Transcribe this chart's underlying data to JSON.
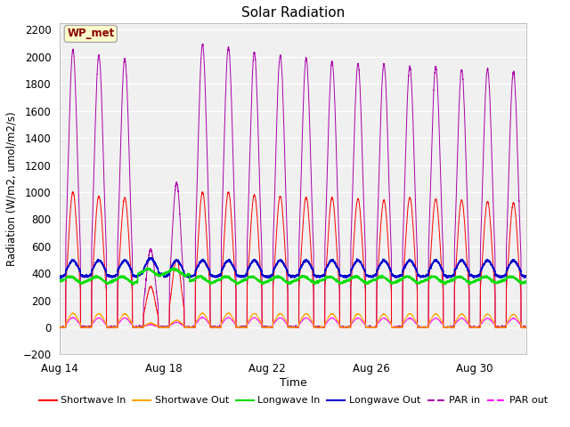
{
  "title": "Solar Radiation",
  "xlabel": "Time",
  "ylabel": "Radiation (W/m2, umol/m2/s)",
  "ylim": [
    -200,
    2250
  ],
  "yticks": [
    -200,
    0,
    200,
    400,
    600,
    800,
    1000,
    1200,
    1400,
    1600,
    1800,
    2000,
    2200
  ],
  "x_tick_days": [
    14,
    18,
    22,
    26,
    30
  ],
  "n_days": 18,
  "points_per_day": 288,
  "shortwave_in_peak": 1000,
  "longwave_in_base": 340,
  "longwave_out_base": 395,
  "par_in_peak": 2050,
  "par_out_peak": 80,
  "colors": {
    "shortwave_in": "#FF0000",
    "shortwave_out": "#FFA500",
    "longwave_in": "#00DD00",
    "longwave_out": "#0000CC",
    "par_in": "#AA00AA",
    "par_out": "#FF00FF"
  },
  "fig_bg_color": "#FFFFFF",
  "plot_bg_color": "#F0F0F0",
  "annotation_label": "WP_met",
  "annotation_bg": "#FFFFCC",
  "annotation_border": "#AAAAAA",
  "annotation_text_color": "#8B0000",
  "figsize": [
    6.4,
    4.8
  ],
  "dpi": 100
}
